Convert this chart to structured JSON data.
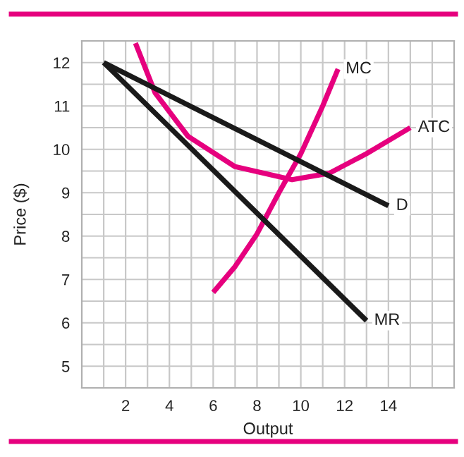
{
  "chart_data": {
    "type": "line",
    "xlabel": "Output",
    "ylabel": "Price ($)",
    "xlim": [
      0,
      17
    ],
    "ylim": [
      4.5,
      12.5
    ],
    "xticks": [
      {
        "value": 1,
        "label": null
      },
      2,
      {
        "value": 3,
        "label": null
      },
      4,
      {
        "value": 5,
        "label": null
      },
      6,
      {
        "value": 7,
        "label": null
      },
      8,
      {
        "value": 9,
        "label": null
      },
      10,
      {
        "value": 11,
        "label": null
      },
      12,
      {
        "value": 13,
        "label": null
      },
      14,
      {
        "value": 15,
        "label": null
      },
      {
        "value": 16,
        "label": null
      }
    ],
    "yticks": [
      5,
      {
        "value": 5.5,
        "label": null
      },
      6,
      {
        "value": 6.5,
        "label": null
      },
      7,
      {
        "value": 7.5,
        "label": null
      },
      8,
      {
        "value": 8.5,
        "label": null
      },
      9,
      {
        "value": 9.5,
        "label": null
      },
      10,
      {
        "value": 10.5,
        "label": null
      },
      11,
      {
        "value": 11.5,
        "label": null
      },
      12
    ],
    "grid": true,
    "legend": false,
    "series": [
      {
        "name": "MC",
        "color": "#e6007e",
        "x": [
          6,
          7,
          8,
          9,
          10,
          11,
          11.7
        ],
        "values": [
          6.7,
          7.3,
          8.05,
          9.0,
          9.9,
          11.0,
          11.85
        ]
      },
      {
        "name": "ATC",
        "color": "#e6007e",
        "x": [
          2.45,
          3.35,
          4.85,
          7.0,
          9.6,
          11.3,
          13.0,
          15.0
        ],
        "values": [
          12.45,
          11.3,
          10.3,
          9.6,
          9.3,
          9.45,
          9.9,
          10.5
        ]
      },
      {
        "name": "D",
        "color": "#1a1a1a",
        "x": [
          1,
          14
        ],
        "values": [
          12,
          8.7
        ]
      },
      {
        "name": "MR",
        "color": "#1a1a1a",
        "x": [
          1,
          13
        ],
        "values": [
          12,
          6.05
        ]
      }
    ]
  }
}
